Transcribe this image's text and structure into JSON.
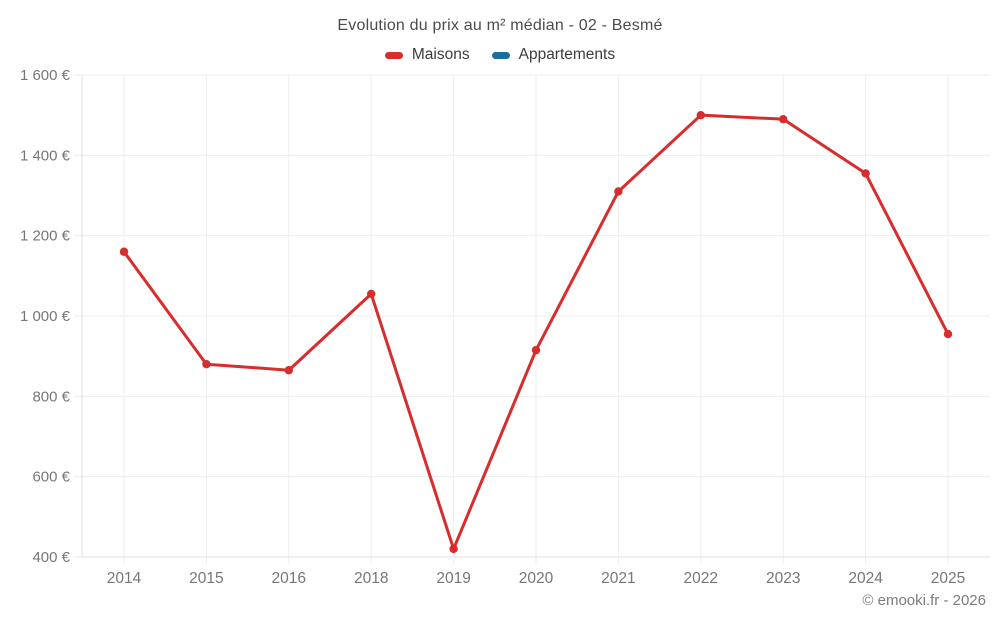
{
  "header": {
    "title": "Evolution du prix au m² médian - 02 - Besmé"
  },
  "legend": {
    "items": [
      {
        "label": "Maisons",
        "color": "#d92c2c"
      },
      {
        "label": "Appartements",
        "color": "#1b6d9e"
      }
    ]
  },
  "footer": {
    "credit": "© emooki.fr - 2026"
  },
  "chart_data": {
    "type": "line",
    "title": "Evolution du prix au m² médian - 02 - Besmé",
    "categories": [
      "2014",
      "2015",
      "2016",
      "2018",
      "2019",
      "2020",
      "2021",
      "2022",
      "2023",
      "2024",
      "2025"
    ],
    "series": [
      {
        "name": "Maisons",
        "color": "#d92c2c",
        "values": [
          1160,
          880,
          865,
          1055,
          420,
          915,
          1310,
          1500,
          1490,
          1355,
          955
        ]
      },
      {
        "name": "Appartements",
        "color": "#1b6d9e",
        "values": []
      }
    ],
    "xlabel": "",
    "ylabel": "",
    "ylim": [
      400,
      1600
    ],
    "yticks": {
      "values": [
        400,
        600,
        800,
        1000,
        1200,
        1400,
        1600
      ],
      "labels": [
        "400 €",
        "600 €",
        "800 €",
        "1 000 €",
        "1 200 €",
        "1 400 €",
        "1 600 €"
      ]
    },
    "grid": true,
    "legend_position": "top"
  }
}
